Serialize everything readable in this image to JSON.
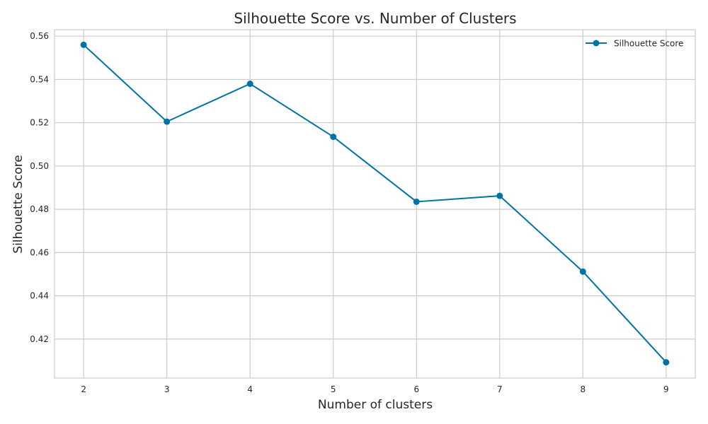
{
  "chart_data": {
    "type": "line",
    "title": "Silhouette Score vs. Number of Clusters",
    "xlabel": "Number of clusters",
    "ylabel": "Silhouette Score",
    "x": [
      2,
      3,
      4,
      5,
      6,
      7,
      8,
      9
    ],
    "series": [
      {
        "name": "Silhouette Score",
        "values": [
          0.556,
          0.5205,
          0.538,
          0.5135,
          0.4835,
          0.4862,
          0.4512,
          0.4093
        ],
        "color": "#0072a8",
        "marker": "circle"
      }
    ],
    "xticks": [
      2,
      3,
      4,
      5,
      6,
      7,
      8,
      9
    ],
    "yticks": [
      0.42,
      0.44,
      0.46,
      0.48,
      0.5,
      0.52,
      0.54,
      0.56
    ],
    "ytick_labels": [
      "0.42",
      "0.44",
      "0.46",
      "0.48",
      "0.50",
      "0.52",
      "0.54",
      "0.56"
    ],
    "xlim": [
      1.65,
      9.35
    ],
    "ylim": [
      0.402,
      0.563
    ],
    "grid": true,
    "legend": "top-right"
  }
}
